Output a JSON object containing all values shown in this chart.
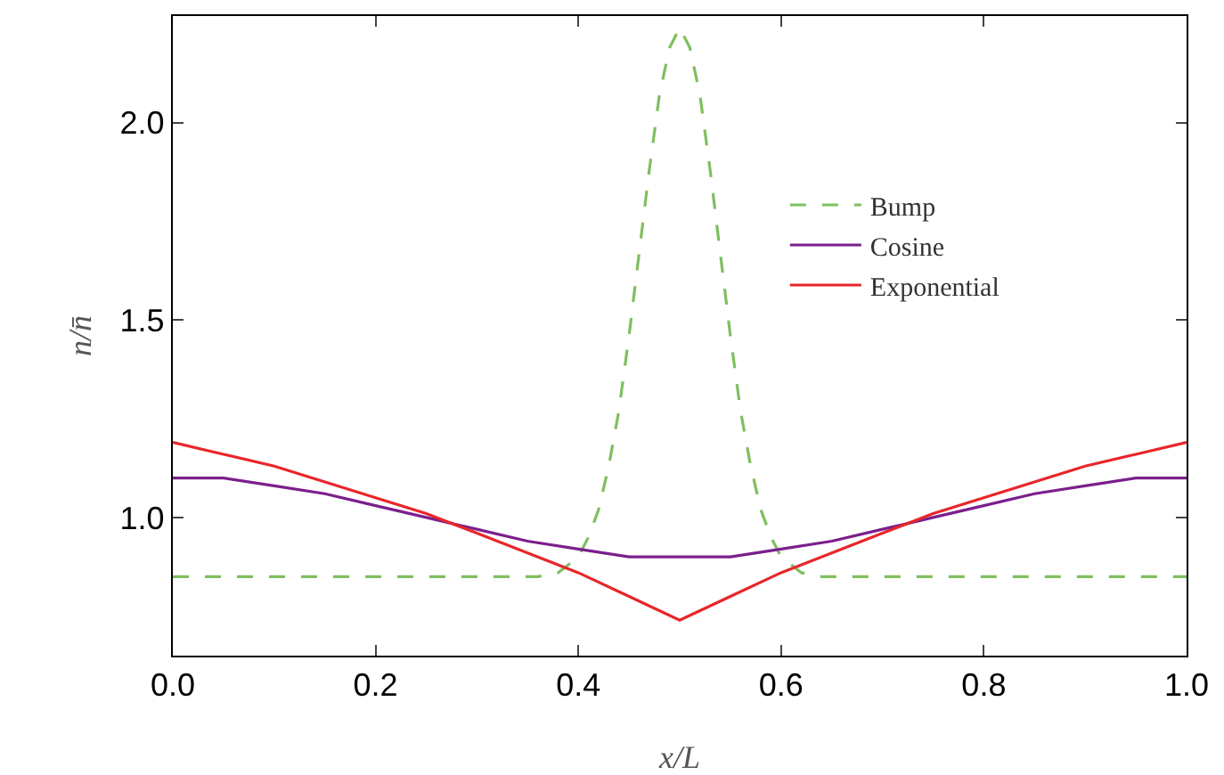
{
  "chart_data": {
    "type": "line",
    "xlabel": "x/L",
    "ylabel": "n/n̄",
    "xlim": [
      0,
      1
    ],
    "ylim": [
      0.65,
      2.27
    ],
    "xticks": [
      {
        "value": 0,
        "label": "0.0"
      },
      {
        "value": 0.2,
        "label": "0.2"
      },
      {
        "value": 0.4,
        "label": "0.4"
      },
      {
        "value": 0.6,
        "label": "0.6"
      },
      {
        "value": 0.8,
        "label": "0.8"
      },
      {
        "value": 1,
        "label": "1.0"
      }
    ],
    "yticks": [
      {
        "value": 1,
        "label": "1.0"
      },
      {
        "value": 1.5,
        "label": "1.5"
      },
      {
        "value": 2,
        "label": "2.0"
      }
    ],
    "grid": false,
    "legend": "right",
    "marker": "none",
    "series": [
      {
        "name": "Bump",
        "color": "#7fbf5f",
        "line_style": "dashed",
        "x": [
          0,
          0.36,
          0.38,
          0.4,
          0.41,
          0.42,
          0.43,
          0.44,
          0.45,
          0.46,
          0.47,
          0.48,
          0.49,
          0.5,
          0.51,
          0.52,
          0.53,
          0.54,
          0.55,
          0.56,
          0.57,
          0.58,
          0.59,
          0.6,
          0.62,
          0.64,
          1
        ],
        "values": [
          0.85,
          0.85,
          0.86,
          0.9,
          0.95,
          1.02,
          1.13,
          1.27,
          1.46,
          1.67,
          1.88,
          2.07,
          2.19,
          2.24,
          2.19,
          2.07,
          1.88,
          1.67,
          1.46,
          1.27,
          1.13,
          1.02,
          0.95,
          0.9,
          0.86,
          0.85,
          0.85
        ]
      },
      {
        "name": "Cosine",
        "color": "#7b1f8c",
        "line_style": "solid",
        "x": [
          0,
          0.05,
          0.1,
          0.15,
          0.2,
          0.25,
          0.3,
          0.35,
          0.4,
          0.45,
          0.5,
          0.55,
          0.6,
          0.65,
          0.7,
          0.75,
          0.8,
          0.85,
          0.9,
          0.95,
          1
        ],
        "values": [
          1.1,
          1.1,
          1.08,
          1.06,
          1.03,
          1.0,
          0.97,
          0.94,
          0.92,
          0.9,
          0.9,
          0.9,
          0.92,
          0.94,
          0.97,
          1.0,
          1.03,
          1.06,
          1.08,
          1.1,
          1.1
        ]
      },
      {
        "name": "Exponential",
        "color": "#e8262a",
        "line_style": "solid",
        "x": [
          0,
          0.05,
          0.1,
          0.15,
          0.2,
          0.25,
          0.3,
          0.35,
          0.4,
          0.45,
          0.5,
          0.55,
          0.6,
          0.65,
          0.7,
          0.75,
          0.8,
          0.85,
          0.9,
          0.95,
          1
        ],
        "values": [
          1.19,
          1.16,
          1.13,
          1.09,
          1.05,
          1.01,
          0.96,
          0.91,
          0.86,
          0.8,
          0.74,
          0.8,
          0.86,
          0.91,
          0.96,
          1.01,
          1.05,
          1.09,
          1.13,
          1.16,
          1.19
        ]
      }
    ]
  }
}
